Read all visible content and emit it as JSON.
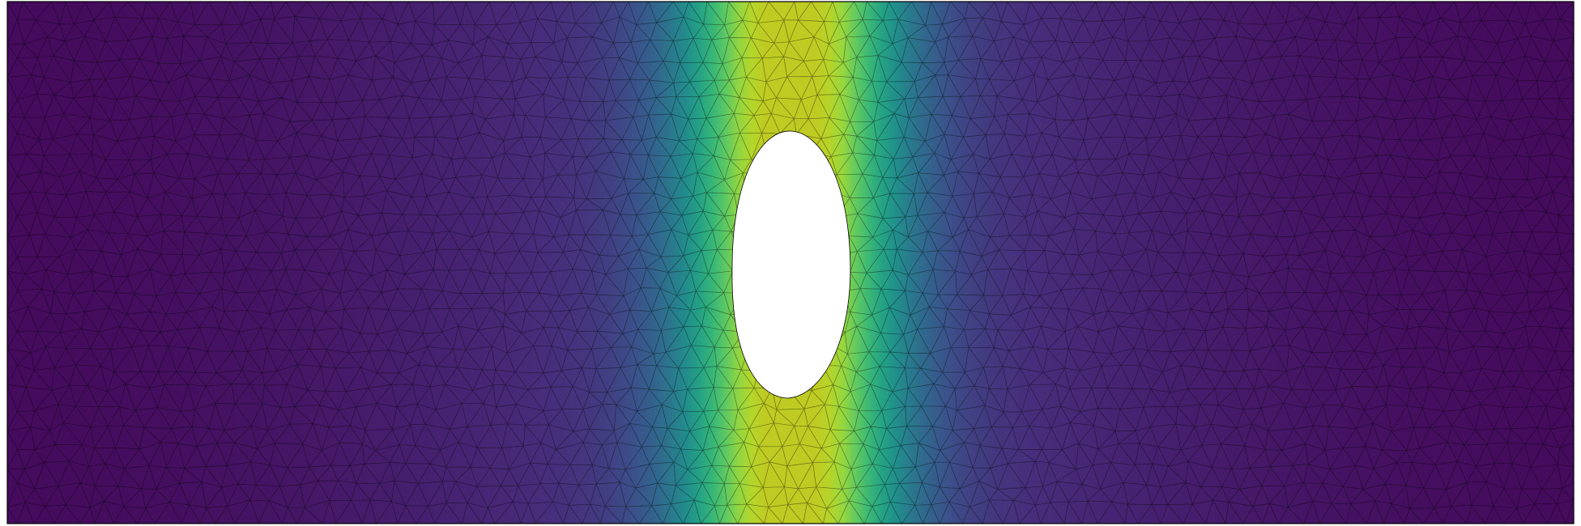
{
  "scene": {
    "colormap": "viridis",
    "colormap_stops": [
      "#440154",
      "#472d7b",
      "#3b528b",
      "#2c728e",
      "#21918c",
      "#28ae80",
      "#5ec962",
      "#addc30",
      "#c8c21b",
      "#d4b51a"
    ],
    "mesh_edge_color": "#000000",
    "hole_fill": "#ffffff",
    "frame_color": "#000000",
    "field_shape": "gaussian band centered on elliptical hole, peaking at hole top and bottom",
    "field_peak_level": 0.78,
    "field_background_level": 0.02
  }
}
